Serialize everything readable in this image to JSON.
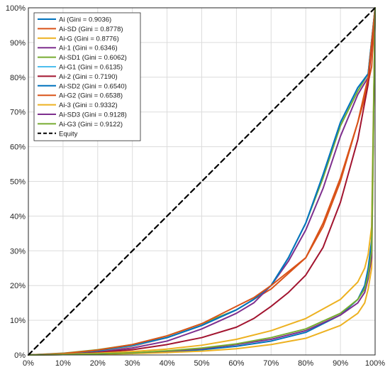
{
  "chart_data": {
    "type": "line",
    "title": "",
    "xlabel": "",
    "ylabel": "",
    "xlim": [
      0,
      100
    ],
    "ylim": [
      0,
      100
    ],
    "x_ticks": [
      "0%",
      "10%",
      "20%",
      "30%",
      "40%",
      "50%",
      "60%",
      "70%",
      "80%",
      "90%",
      "100%"
    ],
    "y_ticks": [
      "0%",
      "10%",
      "20%",
      "30%",
      "40%",
      "50%",
      "60%",
      "70%",
      "80%",
      "90%",
      "100%"
    ],
    "grid": true,
    "legend_position": "top-left",
    "series": [
      {
        "name": "Ai (Gini = 0.9036)",
        "color": "#0072BD",
        "x": [
          0,
          10,
          20,
          30,
          40,
          50,
          60,
          70,
          80,
          90,
          95,
          97,
          98,
          99,
          100
        ],
        "y": [
          0,
          0.1,
          0.3,
          0.5,
          0.9,
          1.5,
          2.5,
          4,
          6.5,
          11.5,
          16,
          20,
          25,
          33,
          100
        ]
      },
      {
        "name": "Ai-SD (Gini = 0.8778)",
        "color": "#D95319",
        "x": [
          0,
          10,
          20,
          30,
          40,
          50,
          60,
          70,
          80,
          85,
          90,
          95,
          97,
          99,
          100
        ],
        "y": [
          0,
          0.3,
          1,
          2.5,
          5,
          8.5,
          13,
          19,
          28,
          38,
          51,
          67,
          74,
          83,
          100
        ]
      },
      {
        "name": "Ai-G (Gini = 0.8776)",
        "color": "#EDB120",
        "x": [
          0,
          10,
          20,
          30,
          40,
          50,
          60,
          70,
          80,
          90,
          95,
          97,
          98,
          99,
          100
        ],
        "y": [
          0,
          0.1,
          0.2,
          0.4,
          0.7,
          1.1,
          1.8,
          3,
          4.8,
          8.5,
          12,
          15,
          19,
          25,
          100
        ]
      },
      {
        "name": "Ai-1 (Gini = 0.6346)",
        "color": "#7E2F8E",
        "x": [
          0,
          10,
          20,
          30,
          40,
          50,
          60,
          65,
          70,
          75,
          80,
          85,
          90,
          95,
          98,
          100
        ],
        "y": [
          0,
          0.2,
          0.8,
          2,
          4,
          7.5,
          12,
          15,
          20,
          27,
          36,
          48,
          63,
          75,
          80,
          100
        ]
      },
      {
        "name": "Ai-SD1 (Gini = 0.6062)",
        "color": "#77AC30",
        "x": [
          0,
          10,
          20,
          30,
          40,
          50,
          60,
          65,
          70,
          75,
          80,
          85,
          90,
          95,
          98,
          100
        ],
        "y": [
          0,
          0.5,
          1.5,
          3,
          5.5,
          9,
          13,
          16,
          20,
          28,
          38,
          51,
          66,
          76,
          81,
          100
        ]
      },
      {
        "name": "Ai-G1 (Gini = 0.6135)",
        "color": "#4DBEEE",
        "x": [
          0,
          10,
          20,
          30,
          40,
          50,
          60,
          65,
          70,
          75,
          80,
          85,
          90,
          95,
          98,
          100
        ],
        "y": [
          0,
          0.4,
          1.2,
          2.6,
          5,
          8.5,
          13,
          16,
          20,
          28,
          38,
          52,
          67,
          77,
          81,
          100
        ]
      },
      {
        "name": "Ai-2 (Gini = 0.7190)",
        "color": "#A2142F",
        "x": [
          0,
          10,
          20,
          30,
          40,
          50,
          60,
          65,
          70,
          75,
          80,
          85,
          90,
          95,
          98,
          100
        ],
        "y": [
          0,
          0.2,
          0.7,
          1.5,
          3,
          5,
          8,
          10.5,
          14,
          18,
          23,
          31,
          44,
          62,
          78,
          100
        ]
      },
      {
        "name": "Ai-SD2 (Gini = 0.6540)",
        "color": "#0072BD",
        "x": [
          0,
          10,
          20,
          30,
          40,
          50,
          60,
          65,
          70,
          75,
          80,
          85,
          90,
          95,
          98,
          100
        ],
        "y": [
          0,
          0.4,
          1.2,
          2.8,
          5,
          8.5,
          13,
          16,
          20,
          28,
          38,
          52,
          67,
          77,
          81,
          100
        ]
      },
      {
        "name": "Ai-G2 (Gini = 0.6538)",
        "color": "#D95319",
        "x": [
          0,
          10,
          20,
          30,
          40,
          50,
          60,
          65,
          70,
          75,
          80,
          85,
          90,
          95,
          98,
          100
        ],
        "y": [
          0,
          0.4,
          1.4,
          3,
          5.5,
          9,
          14,
          16.5,
          20,
          24,
          28,
          37,
          50,
          67,
          80,
          100
        ]
      },
      {
        "name": "Ai-3 (Gini = 0.9332)",
        "color": "#EDB120",
        "x": [
          0,
          10,
          20,
          30,
          40,
          50,
          60,
          70,
          80,
          90,
          95,
          97,
          98,
          99,
          100
        ],
        "y": [
          0,
          0.2,
          0.5,
          1,
          1.7,
          2.8,
          4.5,
          7,
          10.5,
          16,
          21,
          25,
          29,
          37,
          100
        ]
      },
      {
        "name": "Ai-SD3 (Gini = 0.9128)",
        "color": "#7E2F8E",
        "x": [
          0,
          10,
          20,
          30,
          40,
          50,
          60,
          70,
          80,
          90,
          95,
          97,
          98,
          99,
          100
        ],
        "y": [
          0,
          0.1,
          0.3,
          0.6,
          1.1,
          1.8,
          3,
          4.5,
          7,
          11.5,
          15,
          18,
          22,
          28,
          100
        ]
      },
      {
        "name": "Ai-G3 (Gini = 0.9122)",
        "color": "#77AC30",
        "x": [
          0,
          10,
          20,
          30,
          40,
          50,
          60,
          70,
          80,
          90,
          95,
          97,
          98,
          99,
          100
        ],
        "y": [
          0,
          0.1,
          0.3,
          0.6,
          1.2,
          2,
          3.2,
          5,
          7.5,
          12,
          16,
          19,
          23,
          30,
          100
        ]
      },
      {
        "name": "Equity",
        "color": "#000000",
        "dashed": true,
        "x": [
          0,
          100
        ],
        "y": [
          0,
          100
        ]
      }
    ]
  }
}
